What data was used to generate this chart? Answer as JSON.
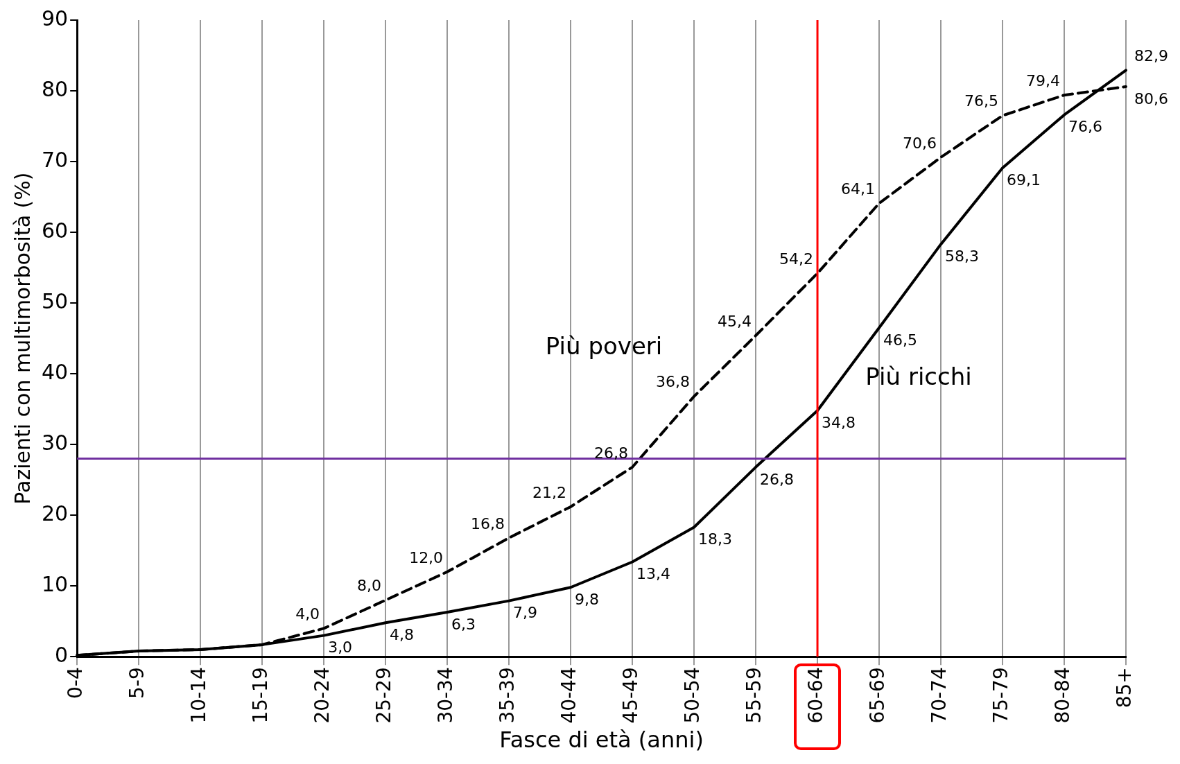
{
  "chart_data": {
    "type": "line",
    "xlabel": "Fasce di età (anni)",
    "ylabel": "Pazienti con multimorbosità (%)",
    "categories": [
      "0-4",
      "5-9",
      "10-14",
      "15-19",
      "20-24",
      "25-29",
      "30-34",
      "35-39",
      "40-44",
      "45-49",
      "50-54",
      "55-59",
      "60-64",
      "65-69",
      "70-74",
      "75-79",
      "80-84",
      "85+"
    ],
    "series": [
      {
        "name": "Più poveri",
        "color": "#000000",
        "line_style": "dashed",
        "values": [
          0.2,
          0.8,
          1.0,
          1.7,
          4.0,
          8.0,
          12.0,
          16.8,
          21.2,
          26.8,
          36.8,
          45.4,
          54.2,
          64.1,
          70.6,
          76.5,
          79.4,
          80.6
        ],
        "value_labels": [
          null,
          null,
          null,
          null,
          "4,0",
          "8,0",
          "12,0",
          "16,8",
          "21,2",
          "26,8",
          "36,8",
          "45,4",
          "54,2",
          "64,1",
          "70,6",
          "76,5",
          "79,4",
          "80,6"
        ]
      },
      {
        "name": "Più ricchi",
        "color": "#000000",
        "line_style": "solid",
        "values": [
          0.2,
          0.8,
          1.0,
          1.7,
          3.0,
          4.8,
          6.3,
          7.9,
          9.8,
          13.4,
          18.3,
          26.8,
          34.8,
          46.5,
          58.3,
          69.1,
          76.6,
          82.9
        ],
        "value_labels": [
          null,
          null,
          null,
          null,
          "3,0",
          "4,8",
          "6,3",
          "7,9",
          "9,8",
          "13,4",
          "18,3",
          "26,8",
          "34,8",
          "46,5",
          "58,3",
          "69,1",
          "76,6",
          "82,9"
        ]
      }
    ],
    "ylim": [
      0,
      90
    ],
    "yticks": [
      0,
      10,
      20,
      30,
      40,
      50,
      60,
      70,
      80,
      90
    ],
    "grid": "x",
    "legend": false,
    "marker": "none",
    "ref_lines": [
      {
        "axis": "y",
        "value": 28,
        "color": "#7030a0"
      },
      {
        "axis": "x",
        "value": "60-64",
        "color": "#ff0000"
      }
    ]
  }
}
